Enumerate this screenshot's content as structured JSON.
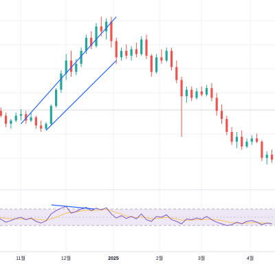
{
  "chart_data": {
    "type": "candlestick",
    "x_axis": {
      "labels": [
        "11월",
        "12월",
        "2025",
        "2월",
        "3월",
        "4월"
      ],
      "bold_labels": [
        "2025"
      ]
    },
    "grid": true,
    "legend": "none",
    "colors": {
      "up": "#26a69a",
      "down": "#ef5350",
      "trendline": "#2962ff",
      "rsi_line": "#7e57c2",
      "rsi_ma": "#f7c55b",
      "rsi_band_fill": "#ede7f6",
      "grid": "#eef0f3",
      "axis_text": "#131722"
    },
    "price_panel": {
      "ylim": [
        0,
        100
      ],
      "candles": [
        {
          "t": 0,
          "o": 40,
          "h": 44,
          "l": 36,
          "c": 41
        },
        {
          "t": 1,
          "o": 41,
          "h": 43,
          "l": 37,
          "c": 38
        },
        {
          "t": 2,
          "o": 38,
          "h": 40,
          "l": 31,
          "c": 33
        },
        {
          "t": 3,
          "o": 33,
          "h": 36,
          "l": 30,
          "c": 35
        },
        {
          "t": 4,
          "o": 35,
          "h": 40,
          "l": 34,
          "c": 38
        },
        {
          "t": 5,
          "o": 38,
          "h": 42,
          "l": 35,
          "c": 39
        },
        {
          "t": 6,
          "o": 39,
          "h": 41,
          "l": 33,
          "c": 35
        },
        {
          "t": 7,
          "o": 35,
          "h": 40,
          "l": 34,
          "c": 37
        },
        {
          "t": 8,
          "o": 37,
          "h": 38,
          "l": 30,
          "c": 32
        },
        {
          "t": 9,
          "o": 32,
          "h": 35,
          "l": 28,
          "c": 30
        },
        {
          "t": 10,
          "o": 30,
          "h": 34,
          "l": 29,
          "c": 33
        },
        {
          "t": 11,
          "o": 33,
          "h": 45,
          "l": 32,
          "c": 44
        },
        {
          "t": 12,
          "o": 44,
          "h": 55,
          "l": 43,
          "c": 54
        },
        {
          "t": 13,
          "o": 54,
          "h": 66,
          "l": 52,
          "c": 64
        },
        {
          "t": 14,
          "o": 64,
          "h": 76,
          "l": 60,
          "c": 72
        },
        {
          "t": 15,
          "o": 72,
          "h": 78,
          "l": 62,
          "c": 65
        },
        {
          "t": 16,
          "o": 65,
          "h": 73,
          "l": 63,
          "c": 70
        },
        {
          "t": 17,
          "o": 70,
          "h": 80,
          "l": 68,
          "c": 78
        },
        {
          "t": 18,
          "o": 78,
          "h": 88,
          "l": 76,
          "c": 86
        },
        {
          "t": 19,
          "o": 86,
          "h": 90,
          "l": 79,
          "c": 81
        },
        {
          "t": 20,
          "o": 81,
          "h": 95,
          "l": 80,
          "c": 93
        },
        {
          "t": 21,
          "o": 93,
          "h": 99,
          "l": 87,
          "c": 90
        },
        {
          "t": 22,
          "o": 90,
          "h": 98,
          "l": 85,
          "c": 96
        },
        {
          "t": 23,
          "o": 96,
          "h": 99,
          "l": 80,
          "c": 84
        },
        {
          "t": 24,
          "o": 84,
          "h": 86,
          "l": 70,
          "c": 74
        },
        {
          "t": 25,
          "o": 74,
          "h": 80,
          "l": 72,
          "c": 78
        },
        {
          "t": 26,
          "o": 78,
          "h": 82,
          "l": 73,
          "c": 75
        },
        {
          "t": 27,
          "o": 75,
          "h": 81,
          "l": 72,
          "c": 79
        },
        {
          "t": 28,
          "o": 79,
          "h": 83,
          "l": 74,
          "c": 76
        },
        {
          "t": 29,
          "o": 76,
          "h": 87,
          "l": 75,
          "c": 85
        },
        {
          "t": 30,
          "o": 85,
          "h": 88,
          "l": 73,
          "c": 75
        },
        {
          "t": 31,
          "o": 75,
          "h": 76,
          "l": 62,
          "c": 65
        },
        {
          "t": 32,
          "o": 65,
          "h": 76,
          "l": 64,
          "c": 74
        },
        {
          "t": 33,
          "o": 74,
          "h": 79,
          "l": 70,
          "c": 72
        },
        {
          "t": 34,
          "o": 72,
          "h": 80,
          "l": 71,
          "c": 78
        },
        {
          "t": 35,
          "o": 78,
          "h": 80,
          "l": 66,
          "c": 68
        },
        {
          "t": 36,
          "o": 68,
          "h": 72,
          "l": 58,
          "c": 60
        },
        {
          "t": 37,
          "o": 60,
          "h": 62,
          "l": 25,
          "c": 50
        },
        {
          "t": 38,
          "o": 50,
          "h": 56,
          "l": 46,
          "c": 54
        },
        {
          "t": 39,
          "o": 54,
          "h": 56,
          "l": 47,
          "c": 49
        },
        {
          "t": 40,
          "o": 49,
          "h": 55,
          "l": 48,
          "c": 53
        },
        {
          "t": 41,
          "o": 53,
          "h": 56,
          "l": 50,
          "c": 51
        },
        {
          "t": 42,
          "o": 51,
          "h": 57,
          "l": 50,
          "c": 55
        },
        {
          "t": 43,
          "o": 55,
          "h": 58,
          "l": 47,
          "c": 49
        },
        {
          "t": 44,
          "o": 49,
          "h": 52,
          "l": 38,
          "c": 41
        },
        {
          "t": 45,
          "o": 41,
          "h": 45,
          "l": 33,
          "c": 36
        },
        {
          "t": 46,
          "o": 36,
          "h": 38,
          "l": 26,
          "c": 28
        },
        {
          "t": 47,
          "o": 28,
          "h": 31,
          "l": 20,
          "c": 22
        },
        {
          "t": 48,
          "o": 22,
          "h": 28,
          "l": 18,
          "c": 25
        },
        {
          "t": 49,
          "o": 25,
          "h": 29,
          "l": 17,
          "c": 19
        },
        {
          "t": 50,
          "o": 19,
          "h": 24,
          "l": 18,
          "c": 22
        },
        {
          "t": 51,
          "o": 22,
          "h": 26,
          "l": 20,
          "c": 24
        },
        {
          "t": 52,
          "o": 24,
          "h": 27,
          "l": 21,
          "c": 22
        },
        {
          "t": 53,
          "o": 22,
          "h": 23,
          "l": 10,
          "c": 12
        },
        {
          "t": 54,
          "o": 12,
          "h": 16,
          "l": 8,
          "c": 14
        },
        {
          "t": 55,
          "o": 14,
          "h": 17,
          "l": 9,
          "c": 11
        }
      ],
      "trendlines": [
        {
          "x1": 5,
          "y1": 33,
          "x2": 24,
          "y2": 99
        },
        {
          "x1": 10,
          "y1": 29,
          "x2": 24,
          "y2": 72
        }
      ]
    },
    "rsi_panel": {
      "ylim": [
        0,
        100
      ],
      "upper_band": 70,
      "middle_line": 50,
      "lower_band": 30,
      "values": [
        52,
        45,
        38,
        42,
        47,
        50,
        44,
        48,
        40,
        36,
        41,
        58,
        66,
        72,
        76,
        60,
        64,
        70,
        74,
        66,
        72,
        68,
        73,
        58,
        48,
        54,
        47,
        52,
        46,
        58,
        44,
        40,
        52,
        50,
        56,
        44,
        40,
        34,
        46,
        44,
        48,
        45,
        52,
        44,
        38,
        34,
        30,
        32,
        38,
        34,
        40,
        42,
        38,
        32,
        36,
        34
      ],
      "ma": [
        50,
        49,
        47,
        46,
        46,
        46,
        45,
        46,
        45,
        44,
        43,
        46,
        50,
        55,
        60,
        62,
        63,
        65,
        67,
        66,
        67,
        68,
        69,
        66,
        61,
        58,
        53,
        51,
        49,
        51,
        49,
        46,
        47,
        48,
        50,
        48,
        46,
        43,
        43,
        43,
        44,
        44,
        45,
        45,
        44,
        42,
        39,
        37,
        36,
        35,
        36,
        37,
        37,
        36,
        36,
        35
      ],
      "divergence_line": {
        "x1": 13,
        "y1": 80,
        "x2": 21,
        "y2": 70
      }
    }
  }
}
